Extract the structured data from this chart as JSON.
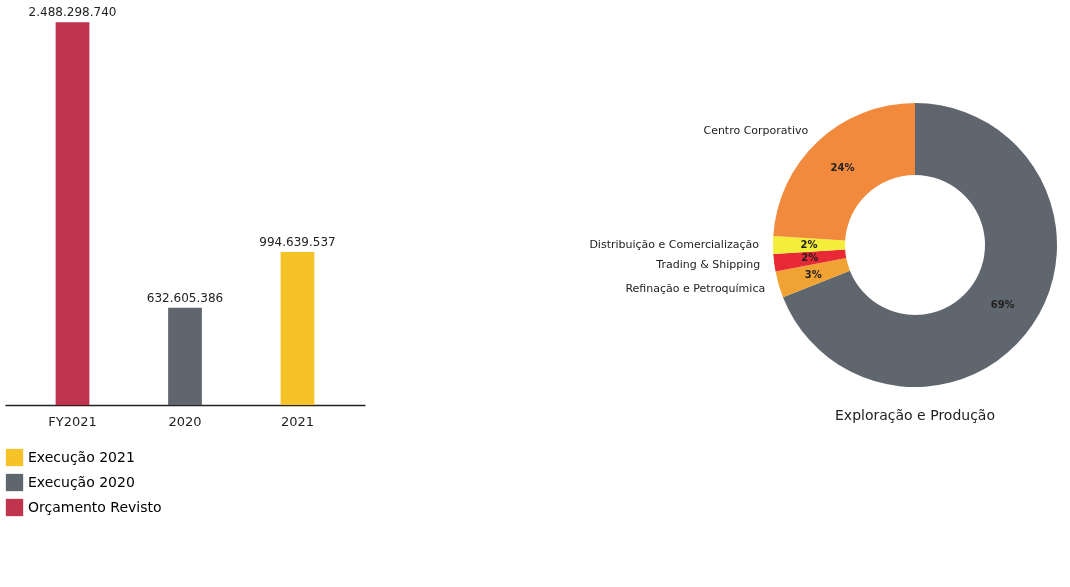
{
  "chart_data": [
    {
      "type": "bar",
      "categories": [
        "FY2021",
        "2020",
        "2021"
      ],
      "legend": "bottom left",
      "series": [
        {
          "name": "Execução 2021",
          "color": "#f5c228",
          "values": [
            null,
            null,
            994639537
          ],
          "value_labels": [
            null,
            null,
            "994.639.537"
          ]
        },
        {
          "name": "Execução 2020",
          "color": "#5f666d",
          "values": [
            null,
            632605386,
            null
          ],
          "value_labels": [
            null,
            "632.605.386",
            null
          ]
        },
        {
          "name": "Orçamento Revisto",
          "color": "#c2344e",
          "values": [
            2488298740,
            null,
            null
          ],
          "value_labels": [
            "2.488.298.740",
            null,
            null
          ]
        }
      ]
    },
    {
      "type": "donut",
      "categories": [
        "Exploração e Produção",
        "Refinação e Petroquímica",
        "Trading & Shipping",
        "Distribuição e Comercialização",
        "Centro Corporativo"
      ],
      "values": [
        69,
        3,
        2,
        2,
        24
      ],
      "colors": [
        "#5f666d",
        "#f0a232",
        "#e82a36",
        "#f2ee3a",
        "#f28a3e"
      ],
      "value_labels": [
        "69%",
        "3%",
        "2%",
        "2%",
        "24%"
      ]
    }
  ]
}
